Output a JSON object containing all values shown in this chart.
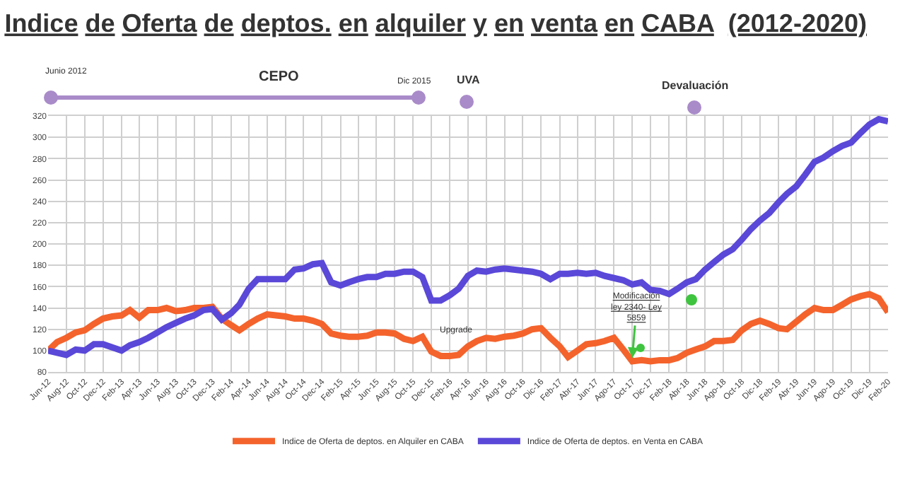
{
  "chart_data": {
    "type": "line",
    "title": "Indice de Oferta de deptos. en alquiler y en venta en CABA  (2012-2020)",
    "x": [
      "2012-06",
      "2012-07",
      "2012-08",
      "2012-09",
      "2012-10",
      "2012-11",
      "2012-12",
      "2013-01",
      "2013-02",
      "2013-03",
      "2013-04",
      "2013-05",
      "2013-06",
      "2013-07",
      "2013-08",
      "2013-09",
      "2013-10",
      "2013-11",
      "2013-12",
      "2014-01",
      "2014-02",
      "2014-03",
      "2014-04",
      "2014-05",
      "2014-06",
      "2014-07",
      "2014-08",
      "2014-09",
      "2014-10",
      "2014-11",
      "2014-12",
      "2015-01",
      "2015-02",
      "2015-03",
      "2015-04",
      "2015-05",
      "2015-06",
      "2015-07",
      "2015-08",
      "2015-09",
      "2015-10",
      "2015-11",
      "2015-12",
      "2016-01",
      "2016-02",
      "2016-03",
      "2016-04",
      "2016-05",
      "2016-06",
      "2016-07",
      "2016-08",
      "2016-09",
      "2016-10",
      "2016-11",
      "2016-12",
      "2017-01",
      "2017-02",
      "2017-03",
      "2017-04",
      "2017-05",
      "2017-06",
      "2017-07",
      "2017-08",
      "2017-09",
      "2017-10",
      "2017-11",
      "2017-12",
      "2018-01",
      "2018-02",
      "2018-03",
      "2018-04",
      "2018-05",
      "2018-06",
      "2018-07",
      "2018-08",
      "2018-09",
      "2018-10",
      "2018-11",
      "2018-12",
      "2019-01",
      "2019-02",
      "2019-03",
      "2019-04",
      "2019-05",
      "2019-06",
      "2019-07",
      "2019-08",
      "2019-09",
      "2019-10",
      "2019-11",
      "2019-12",
      "2020-01",
      "2020-02"
    ],
    "series": [
      {
        "name": "Indice de Oferta de deptos. en Alquiler en CABA",
        "color": "#f4632c",
        "values": [
          100,
          108,
          112,
          117,
          119,
          125,
          130,
          132,
          133,
          138,
          131,
          138,
          138,
          140,
          137,
          138,
          140,
          140,
          141,
          130,
          124,
          119,
          125,
          130,
          134,
          133,
          132,
          130,
          130,
          128,
          125,
          116,
          114,
          113,
          113,
          114,
          117,
          117,
          116,
          111,
          109,
          113,
          99,
          95,
          95,
          96,
          104,
          109,
          112,
          111,
          113,
          114,
          116,
          120,
          121,
          112,
          104,
          94,
          100,
          106,
          107,
          109,
          112,
          101,
          90,
          91,
          90,
          91,
          91,
          93,
          98,
          101,
          104,
          109,
          109,
          110,
          119,
          125,
          128,
          125,
          121,
          120,
          127,
          134,
          140,
          138,
          138,
          143,
          148,
          151,
          153,
          149,
          136
        ]
      },
      {
        "name": "Indice de Oferta de deptos. en Venta en CABA",
        "color": "#5a48d8",
        "values": [
          100,
          98,
          96,
          101,
          100,
          106,
          106,
          103,
          100,
          105,
          108,
          112,
          117,
          122,
          126,
          130,
          133,
          138,
          139,
          129,
          135,
          143,
          158,
          167,
          167,
          167,
          167,
          176,
          177,
          181,
          182,
          164,
          161,
          164,
          167,
          169,
          169,
          172,
          172,
          174,
          174,
          169,
          147,
          147,
          152,
          158,
          170,
          175,
          174,
          176,
          177,
          176,
          175,
          174,
          172,
          167,
          172,
          172,
          173,
          172,
          173,
          170,
          168,
          166,
          162,
          164,
          157,
          156,
          153,
          158,
          164,
          167,
          176,
          183,
          190,
          195,
          204,
          214,
          222,
          229,
          239,
          247,
          254,
          265,
          277,
          281,
          287,
          292,
          295,
          304,
          312,
          317,
          315
        ]
      }
    ],
    "xlim": [
      "2012-06",
      "2020-02"
    ],
    "xticks": [
      {
        "value": "2012-06",
        "label": "Jun-12"
      },
      {
        "value": "2012-08",
        "label": "Aug-12"
      },
      {
        "value": "2012-10",
        "label": "Oct-12"
      },
      {
        "value": "2012-12",
        "label": "Dec-12"
      },
      {
        "value": "2013-02",
        "label": "Feb-13"
      },
      {
        "value": "2013-04",
        "label": "Apr-13"
      },
      {
        "value": "2013-06",
        "label": "Jun-13"
      },
      {
        "value": "2013-08",
        "label": "Aug-13"
      },
      {
        "value": "2013-10",
        "label": "Oct-13"
      },
      {
        "value": "2013-12",
        "label": "Dec-13"
      },
      {
        "value": "2014-02",
        "label": "Feb-14"
      },
      {
        "value": "2014-04",
        "label": "Apr-14"
      },
      {
        "value": "2014-06",
        "label": "Jun-14"
      },
      {
        "value": "2014-08",
        "label": "Aug-14"
      },
      {
        "value": "2014-10",
        "label": "Oct-14"
      },
      {
        "value": "2014-12",
        "label": "Dec-14"
      },
      {
        "value": "2015-02",
        "label": "Feb-15"
      },
      {
        "value": "2015-04",
        "label": "Apr-15"
      },
      {
        "value": "2015-06",
        "label": "Jun-15"
      },
      {
        "value": "2015-08",
        "label": "Aug-15"
      },
      {
        "value": "2015-10",
        "label": "Oct-15"
      },
      {
        "value": "2015-12",
        "label": "Dec-15"
      },
      {
        "value": "2016-02",
        "label": "Feb-16"
      },
      {
        "value": "2016-04",
        "label": "Apr-16"
      },
      {
        "value": "2016-06",
        "label": "Jun-16"
      },
      {
        "value": "2016-08",
        "label": "Aug-16"
      },
      {
        "value": "2016-10",
        "label": "Oct-16"
      },
      {
        "value": "2016-12",
        "label": "Dic-16"
      },
      {
        "value": "2017-02",
        "label": "Feb-17"
      },
      {
        "value": "2017-04",
        "label": "Abr-17"
      },
      {
        "value": "2017-06",
        "label": "Jun-17"
      },
      {
        "value": "2017-08",
        "label": "Ago-17"
      },
      {
        "value": "2017-10",
        "label": "Oct-17"
      },
      {
        "value": "2017-12",
        "label": "Dic-17"
      },
      {
        "value": "2018-02",
        "label": "Feb-18"
      },
      {
        "value": "2018-04",
        "label": "Abr-18"
      },
      {
        "value": "2018-06",
        "label": "Jun-18"
      },
      {
        "value": "2018-08",
        "label": "Ago-18"
      },
      {
        "value": "2018-10",
        "label": "Oct-18"
      },
      {
        "value": "2018-12",
        "label": "Dic-18"
      },
      {
        "value": "2019-02",
        "label": "Feb-19"
      },
      {
        "value": "2019-04",
        "label": "Abr-19"
      },
      {
        "value": "2019-06",
        "label": "Jun-19"
      },
      {
        "value": "2019-08",
        "label": "Ago-19"
      },
      {
        "value": "2019-10",
        "label": "Oct-19"
      },
      {
        "value": "2019-12",
        "label": "Dic-19"
      },
      {
        "value": "2020-02",
        "label": "Feb-20"
      }
    ],
    "ylim": [
      80,
      320
    ],
    "yticks": [
      80,
      100,
      120,
      140,
      160,
      180,
      200,
      220,
      240,
      260,
      280,
      300,
      320
    ],
    "grid": true,
    "legend": "bottom",
    "marker": "none",
    "line_style": "solid",
    "annotations": [
      "Junio 2012",
      "CEPO",
      "Dic 2015",
      "UVA",
      "Devaluación",
      "Upgrade",
      {
        "text": "Modificación\nley 2340- Ley\n5859",
        "x": "2017-10",
        "y": 93
      }
    ]
  }
}
